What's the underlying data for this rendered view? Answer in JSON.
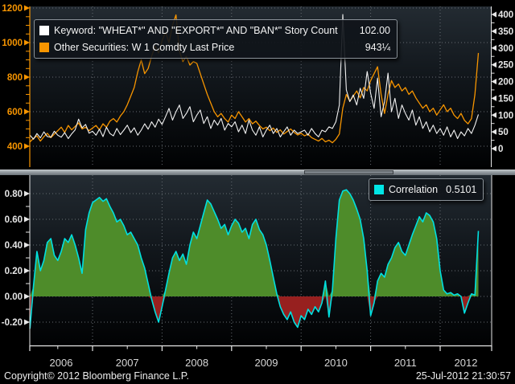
{
  "colors": {
    "background": "#000000",
    "panel_gradient_top": "#232b32",
    "panel_gradient_bottom": "#010203",
    "grid": "#666c72",
    "orange_axis": "#f79500",
    "white_axis": "#e6e6e6",
    "year_label": "#d6d6d6",
    "green_fill": "#4e8c2a",
    "red_fill": "#97201f",
    "cyan_line": "#00e0e0"
  },
  "top_panel": {
    "legend": {
      "rows": [
        {
          "swatch": "#ffffff",
          "label": "Keyword: \"WHEAT*\" AND \"EXPORT*\" AND \"BAN*\" Story Count",
          "value": "102.00"
        },
        {
          "swatch": "#f79500",
          "label": "Other Securities: W 1 Comdty Last Price",
          "value": "943¼"
        }
      ]
    },
    "left_axis": {
      "color": "#f79500",
      "ticks": [
        1200,
        1000,
        800,
        600,
        400
      ],
      "minor_step": 50
    },
    "right_axis": {
      "color": "#e6e6e6",
      "ticks": [
        400,
        350,
        300,
        250,
        200,
        150,
        100,
        50,
        0
      ],
      "minor_step": 25
    }
  },
  "bottom_panel": {
    "legend": {
      "swatch": "#00e5e5",
      "label": "Correlation",
      "value": "0.5101"
    },
    "axis": {
      "color": "#e6e6e6",
      "ticks": [
        0.8,
        0.6,
        0.4,
        0.2,
        0,
        -0.2
      ],
      "minor_step": 0.1
    }
  },
  "x_axis": {
    "years": [
      2006,
      2007,
      2008,
      2009,
      2010,
      2011,
      2012
    ]
  },
  "footer": {
    "copyright": "Copyright© 2012 Bloomberg Finance L.P.",
    "timestamp": "25-Jul-2012 21:30:57"
  },
  "chart_data": [
    {
      "type": "line",
      "title": "Keyword: \"WHEAT*\" AND \"EXPORT*\" AND \"BAN*\" Story Count",
      "yaxis": "right",
      "ylim": [
        0,
        400
      ],
      "color": "#f2f2f2",
      "last": 102.0,
      "x_start": 2006.1,
      "x_step": 0.05,
      "values": [
        40,
        28,
        45,
        32,
        50,
        36,
        34,
        52,
        40,
        34,
        48,
        30,
        44,
        56,
        88,
        62,
        72,
        46,
        52,
        40,
        58,
        36,
        64,
        45,
        38,
        60,
        42,
        55,
        70,
        48,
        62,
        40,
        55,
        74,
        58,
        80,
        64,
        88,
        72,
        95,
        120,
        85,
        110,
        130,
        90,
        105,
        125,
        80,
        100,
        115,
        75,
        95,
        60,
        85,
        70,
        90,
        55,
        75,
        65,
        80,
        50,
        70,
        45,
        85,
        55,
        40,
        65,
        35,
        55,
        70,
        45,
        60,
        35,
        50,
        65,
        40,
        55,
        45,
        50,
        55,
        40,
        60,
        45,
        35,
        55,
        50,
        65,
        60,
        80,
        130,
        400,
        175,
        140,
        160,
        130,
        180,
        150,
        230,
        165,
        120,
        210,
        95,
        140,
        225,
        110,
        150,
        90,
        130,
        105,
        85,
        115,
        70,
        95,
        60,
        80,
        50,
        70,
        45,
        60,
        40,
        65,
        35,
        55,
        30,
        50,
        38,
        60,
        45,
        70,
        102
      ]
    },
    {
      "type": "line",
      "title": "Other Securities: W 1 Comdty Last Price",
      "yaxis": "left",
      "ylim": [
        400,
        1200
      ],
      "color": "#f79500",
      "last": 943.25,
      "x_start": 2006.1,
      "x_step": 0.05,
      "values": [
        425,
        445,
        460,
        430,
        455,
        475,
        450,
        470,
        490,
        510,
        480,
        520,
        495,
        515,
        535,
        500,
        510,
        490,
        505,
        520,
        495,
        530,
        510,
        545,
        560,
        540,
        575,
        600,
        640,
        690,
        740,
        830,
        900,
        820,
        850,
        920,
        980,
        940,
        1010,
        1060,
        1000,
        1100,
        1160,
        950,
        890,
        920,
        870,
        890,
        880,
        820,
        760,
        700,
        650,
        600,
        570,
        590,
        560,
        540,
        580,
        560,
        600,
        570,
        540,
        560,
        530,
        545,
        520,
        500,
        510,
        490,
        505,
        480,
        495,
        470,
        485,
        500,
        480,
        465,
        475,
        460,
        470,
        450,
        440,
        430,
        445,
        425,
        435,
        420,
        440,
        470,
        620,
        700,
        660,
        690,
        720,
        680,
        740,
        720,
        780,
        820,
        860,
        700,
        590,
        700,
        780,
        740,
        760,
        720,
        740,
        700,
        720,
        680,
        650,
        620,
        640,
        600,
        620,
        580,
        610,
        640,
        600,
        620,
        580,
        560,
        590,
        550,
        530,
        560,
        700,
        940
      ]
    },
    {
      "type": "area",
      "title": "Correlation",
      "yaxis": "left",
      "ylim": [
        -0.2,
        0.8
      ],
      "color": "#00e0e0",
      "fill_positive": "#4e8c2a",
      "fill_negative": "#97201f",
      "last": 0.5101,
      "x_start": 2006.1,
      "x_step": 0.05,
      "values": [
        -0.25,
        0.08,
        0.35,
        0.2,
        0.28,
        0.42,
        0.45,
        0.32,
        0.28,
        0.35,
        0.45,
        0.42,
        0.48,
        0.4,
        0.3,
        0.18,
        0.52,
        0.65,
        0.73,
        0.75,
        0.77,
        0.74,
        0.76,
        0.7,
        0.65,
        0.58,
        0.6,
        0.55,
        0.48,
        0.5,
        0.45,
        0.4,
        0.3,
        0.22,
        0.1,
        -0.02,
        -0.12,
        -0.2,
        -0.08,
        0.05,
        0.18,
        0.3,
        0.35,
        0.28,
        0.33,
        0.25,
        0.4,
        0.5,
        0.45,
        0.55,
        0.65,
        0.75,
        0.72,
        0.66,
        0.6,
        0.53,
        0.56,
        0.48,
        0.55,
        0.6,
        0.57,
        0.5,
        0.53,
        0.45,
        0.56,
        0.6,
        0.52,
        0.48,
        0.4,
        0.28,
        0.15,
        0.02,
        -0.08,
        -0.14,
        -0.18,
        -0.12,
        -0.2,
        -0.24,
        -0.15,
        -0.18,
        -0.1,
        -0.14,
        -0.08,
        -0.12,
        -0.05,
        0.12,
        -0.16,
        0.05,
        0.45,
        0.75,
        0.82,
        0.83,
        0.8,
        0.75,
        0.68,
        0.6,
        0.45,
        0.2,
        -0.15,
        -0.05,
        0.12,
        0.18,
        0.15,
        0.25,
        0.3,
        0.38,
        0.42,
        0.35,
        0.32,
        0.4,
        0.48,
        0.55,
        0.62,
        0.58,
        0.65,
        0.63,
        0.58,
        0.45,
        0.2,
        0.05,
        0.02,
        0.03,
        0.01,
        0.02,
        0.0,
        -0.13,
        -0.05,
        0.02,
        0.01,
        0.51
      ]
    }
  ]
}
